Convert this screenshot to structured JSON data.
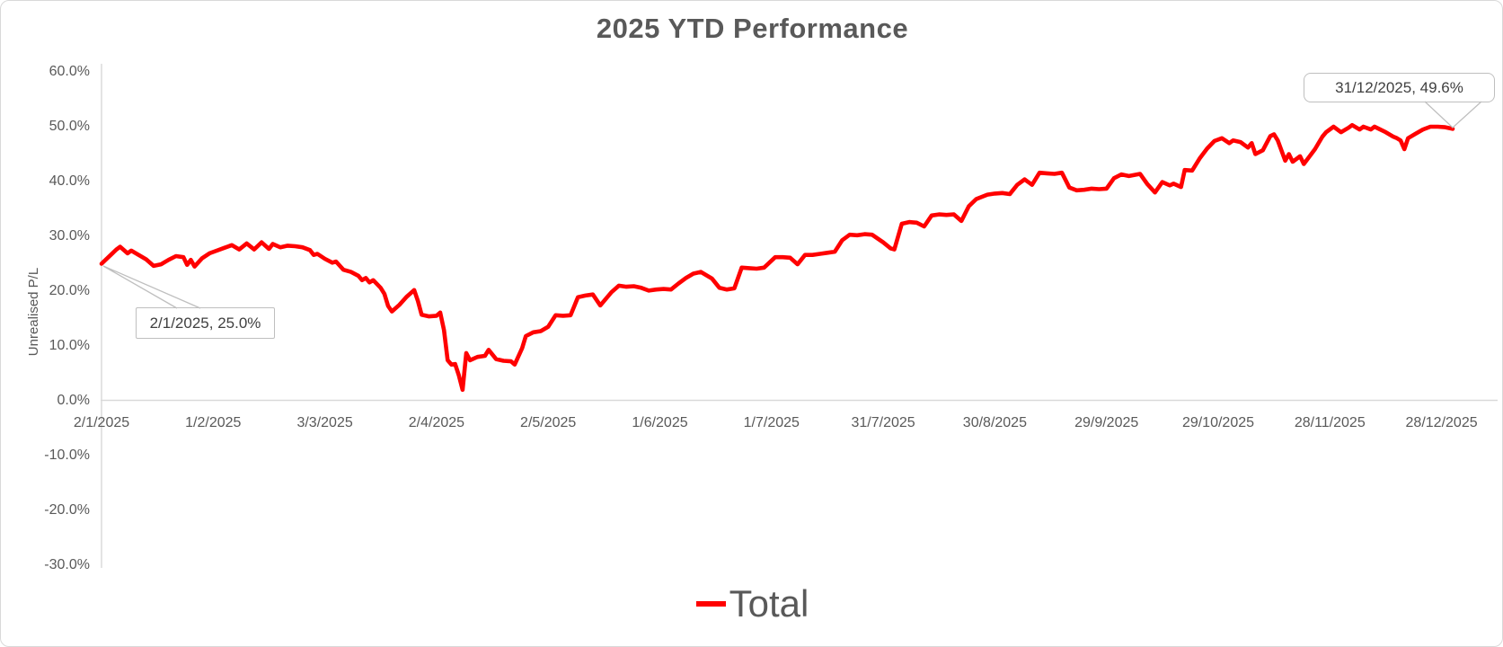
{
  "title": "2025 YTD Performance",
  "y_axis": {
    "title": "Unrealised P/L",
    "ticks": [
      {
        "label": "60.0%",
        "value": 60
      },
      {
        "label": "50.0%",
        "value": 50
      },
      {
        "label": "40.0%",
        "value": 40
      },
      {
        "label": "30.0%",
        "value": 30
      },
      {
        "label": "20.0%",
        "value": 20
      },
      {
        "label": "10.0%",
        "value": 10
      },
      {
        "label": "0.0%",
        "value": 0
      },
      {
        "label": "-10.0%",
        "value": -10
      },
      {
        "label": "-20.0%",
        "value": -20
      },
      {
        "label": "-30.0%",
        "value": -30
      }
    ]
  },
  "x_axis": {
    "ticks": [
      {
        "label": "2/1/2025",
        "day": 2
      },
      {
        "label": "1/2/2025",
        "day": 32
      },
      {
        "label": "3/3/2025",
        "day": 62
      },
      {
        "label": "2/4/2025",
        "day": 92
      },
      {
        "label": "2/5/2025",
        "day": 122
      },
      {
        "label": "1/6/2025",
        "day": 152
      },
      {
        "label": "1/7/2025",
        "day": 182
      },
      {
        "label": "31/7/2025",
        "day": 212
      },
      {
        "label": "30/8/2025",
        "day": 242
      },
      {
        "label": "29/9/2025",
        "day": 272
      },
      {
        "label": "29/10/2025",
        "day": 302
      },
      {
        "label": "28/11/2025",
        "day": 332
      },
      {
        "label": "28/12/2025",
        "day": 362
      }
    ]
  },
  "legend": {
    "label": "Total"
  },
  "callouts": {
    "first": {
      "label": "2/1/2025, 25.0%"
    },
    "last": {
      "label": "31/12/2025, 49.6%"
    }
  },
  "colors": {
    "series": "#FF0000",
    "axis_text": "#595959",
    "axis_line": "#D9D9D9",
    "callout_border": "#BFBFBF",
    "callout_text": "#404040",
    "title_text": "#595959"
  },
  "chart_data": {
    "type": "line",
    "title": "2025 YTD Performance",
    "xlabel": "",
    "ylabel": "Unrealised P/L",
    "ylim": [
      -30,
      60
    ],
    "y_tick_step_pct": 10,
    "grid": false,
    "legend_position": "bottom",
    "x_unit": "day_of_year_2025",
    "x_tick_labels": [
      "2/1/2025",
      "1/2/2025",
      "3/3/2025",
      "2/4/2025",
      "2/5/2025",
      "1/6/2025",
      "1/7/2025",
      "31/7/2025",
      "30/8/2025",
      "29/9/2025",
      "29/10/2025",
      "28/11/2025",
      "28/12/2025"
    ],
    "annotations": [
      {
        "text": "2/1/2025, 25.0%",
        "day": 2,
        "value": 25.0
      },
      {
        "text": "31/12/2025, 49.6%",
        "day": 365,
        "value": 49.6
      }
    ],
    "series": [
      {
        "name": "Total",
        "color": "#FF0000",
        "points": [
          [
            2,
            25.0
          ],
          [
            4,
            26.3
          ],
          [
            6,
            27.6
          ],
          [
            7,
            28.1
          ],
          [
            9,
            26.9
          ],
          [
            10,
            27.4
          ],
          [
            12,
            26.6
          ],
          [
            14,
            25.8
          ],
          [
            16,
            24.6
          ],
          [
            18,
            24.9
          ],
          [
            20,
            25.7
          ],
          [
            22,
            26.4
          ],
          [
            24,
            26.2
          ],
          [
            25,
            24.8
          ],
          [
            26,
            25.7
          ],
          [
            27,
            24.5
          ],
          [
            29,
            26.0
          ],
          [
            31,
            26.9
          ],
          [
            33,
            27.4
          ],
          [
            35,
            27.9
          ],
          [
            37,
            28.4
          ],
          [
            39,
            27.6
          ],
          [
            41,
            28.7
          ],
          [
            43,
            27.6
          ],
          [
            45,
            28.9
          ],
          [
            47,
            27.7
          ],
          [
            48,
            28.6
          ],
          [
            50,
            28.0
          ],
          [
            52,
            28.3
          ],
          [
            54,
            28.2
          ],
          [
            56,
            28.0
          ],
          [
            58,
            27.5
          ],
          [
            59,
            26.6
          ],
          [
            60,
            26.8
          ],
          [
            62,
            25.9
          ],
          [
            64,
            25.2
          ],
          [
            65,
            25.4
          ],
          [
            67,
            23.9
          ],
          [
            69,
            23.5
          ],
          [
            71,
            22.8
          ],
          [
            72,
            22.0
          ],
          [
            73,
            22.4
          ],
          [
            74,
            21.6
          ],
          [
            75,
            22.0
          ],
          [
            77,
            20.6
          ],
          [
            78,
            19.5
          ],
          [
            79,
            17.3
          ],
          [
            80,
            16.3
          ],
          [
            82,
            17.5
          ],
          [
            84,
            19.0
          ],
          [
            86,
            20.2
          ],
          [
            87,
            18.2
          ],
          [
            88,
            15.7
          ],
          [
            90,
            15.4
          ],
          [
            92,
            15.5
          ],
          [
            93,
            16.1
          ],
          [
            94,
            12.9
          ],
          [
            95,
            7.4
          ],
          [
            96,
            6.6
          ],
          [
            97,
            6.7
          ],
          [
            98,
            4.6
          ],
          [
            99,
            2.0
          ],
          [
            100,
            8.7
          ],
          [
            101,
            7.4
          ],
          [
            103,
            8.0
          ],
          [
            105,
            8.2
          ],
          [
            106,
            9.3
          ],
          [
            108,
            7.6
          ],
          [
            110,
            7.3
          ],
          [
            112,
            7.2
          ],
          [
            113,
            6.6
          ],
          [
            115,
            9.6
          ],
          [
            116,
            11.8
          ],
          [
            118,
            12.5
          ],
          [
            120,
            12.7
          ],
          [
            122,
            13.5
          ],
          [
            124,
            15.6
          ],
          [
            126,
            15.5
          ],
          [
            128,
            15.6
          ],
          [
            130,
            18.9
          ],
          [
            132,
            19.2
          ],
          [
            134,
            19.4
          ],
          [
            136,
            17.4
          ],
          [
            139,
            19.8
          ],
          [
            141,
            21.0
          ],
          [
            143,
            20.8
          ],
          [
            145,
            20.9
          ],
          [
            147,
            20.6
          ],
          [
            149,
            20.1
          ],
          [
            151,
            20.3
          ],
          [
            153,
            20.4
          ],
          [
            155,
            20.3
          ],
          [
            157,
            21.4
          ],
          [
            159,
            22.4
          ],
          [
            161,
            23.2
          ],
          [
            163,
            23.5
          ],
          [
            166,
            22.3
          ],
          [
            168,
            20.6
          ],
          [
            170,
            20.3
          ],
          [
            172,
            20.5
          ],
          [
            174,
            24.3
          ],
          [
            176,
            24.2
          ],
          [
            178,
            24.1
          ],
          [
            180,
            24.3
          ],
          [
            183,
            26.2
          ],
          [
            185,
            26.2
          ],
          [
            187,
            26.1
          ],
          [
            189,
            24.9
          ],
          [
            191,
            26.6
          ],
          [
            193,
            26.6
          ],
          [
            195,
            26.8
          ],
          [
            197,
            27.0
          ],
          [
            199,
            27.2
          ],
          [
            201,
            29.3
          ],
          [
            203,
            30.3
          ],
          [
            205,
            30.2
          ],
          [
            207,
            30.4
          ],
          [
            209,
            30.3
          ],
          [
            212,
            28.9
          ],
          [
            214,
            27.8
          ],
          [
            215,
            27.6
          ],
          [
            217,
            32.3
          ],
          [
            219,
            32.6
          ],
          [
            221,
            32.5
          ],
          [
            223,
            31.8
          ],
          [
            225,
            33.8
          ],
          [
            227,
            34.0
          ],
          [
            229,
            33.9
          ],
          [
            231,
            34.0
          ],
          [
            233,
            32.8
          ],
          [
            235,
            35.5
          ],
          [
            237,
            36.8
          ],
          [
            240,
            37.6
          ],
          [
            242,
            37.8
          ],
          [
            244,
            37.9
          ],
          [
            246,
            37.7
          ],
          [
            248,
            39.4
          ],
          [
            250,
            40.4
          ],
          [
            252,
            39.4
          ],
          [
            254,
            41.6
          ],
          [
            256,
            41.5
          ],
          [
            258,
            41.4
          ],
          [
            260,
            41.6
          ],
          [
            262,
            38.9
          ],
          [
            264,
            38.4
          ],
          [
            266,
            38.5
          ],
          [
            268,
            38.7
          ],
          [
            270,
            38.6
          ],
          [
            272,
            38.7
          ],
          [
            274,
            40.6
          ],
          [
            276,
            41.3
          ],
          [
            278,
            41.0
          ],
          [
            281,
            41.4
          ],
          [
            283,
            39.5
          ],
          [
            285,
            38.0
          ],
          [
            287,
            39.9
          ],
          [
            289,
            39.3
          ],
          [
            290,
            39.6
          ],
          [
            292,
            39.0
          ],
          [
            293,
            42.1
          ],
          [
            295,
            42.0
          ],
          [
            297,
            44.2
          ],
          [
            299,
            46.0
          ],
          [
            301,
            47.4
          ],
          [
            303,
            47.9
          ],
          [
            305,
            47.0
          ],
          [
            306,
            47.5
          ],
          [
            308,
            47.2
          ],
          [
            310,
            46.2
          ],
          [
            311,
            47.0
          ],
          [
            312,
            45.0
          ],
          [
            314,
            45.7
          ],
          [
            316,
            48.3
          ],
          [
            317,
            48.6
          ],
          [
            318,
            47.5
          ],
          [
            320,
            43.8
          ],
          [
            321,
            45.0
          ],
          [
            322,
            43.6
          ],
          [
            324,
            44.6
          ],
          [
            325,
            43.2
          ],
          [
            328,
            45.9
          ],
          [
            330,
            48.2
          ],
          [
            331,
            49.0
          ],
          [
            333,
            50.0
          ],
          [
            335,
            49.0
          ],
          [
            337,
            49.8
          ],
          [
            338,
            50.3
          ],
          [
            340,
            49.5
          ],
          [
            341,
            50.0
          ],
          [
            343,
            49.5
          ],
          [
            344,
            50.0
          ],
          [
            347,
            49.0
          ],
          [
            349,
            48.2
          ],
          [
            350,
            47.9
          ],
          [
            351,
            47.5
          ],
          [
            352,
            45.9
          ],
          [
            353,
            47.9
          ],
          [
            355,
            48.7
          ],
          [
            357,
            49.5
          ],
          [
            359,
            50.0
          ],
          [
            361,
            50.0
          ],
          [
            363,
            49.9
          ],
          [
            365,
            49.6
          ]
        ]
      }
    ]
  }
}
